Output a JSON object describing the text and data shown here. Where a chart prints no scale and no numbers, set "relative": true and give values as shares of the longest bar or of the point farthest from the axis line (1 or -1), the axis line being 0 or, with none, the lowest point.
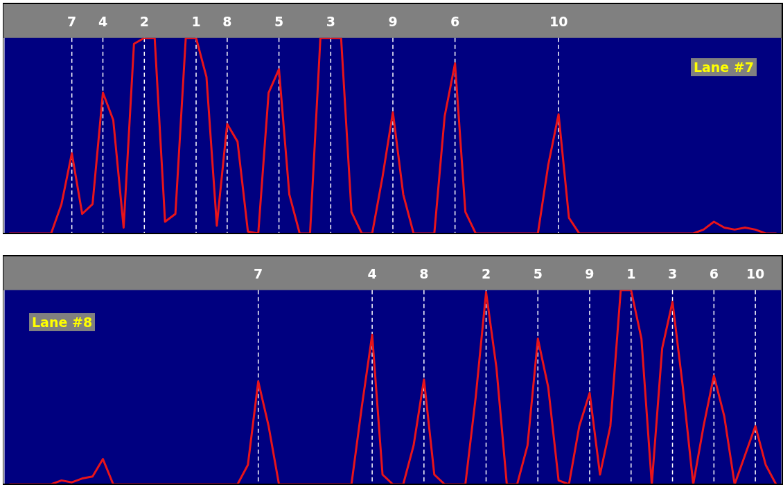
{
  "chart_data": [
    {
      "type": "line",
      "relative": true,
      "tick_labels": "x",
      "marker": "none",
      "line_style": "solid",
      "categories": [
        null,
        null,
        null,
        null,
        null,
        null,
        "7",
        null,
        null,
        "4",
        null,
        null,
        null,
        "2",
        null,
        null,
        null,
        null,
        "1",
        null,
        null,
        "8",
        null,
        null,
        null,
        null,
        "5",
        null,
        null,
        null,
        null,
        "3",
        null,
        null,
        null,
        null,
        null,
        "9",
        null,
        null,
        null,
        null,
        null,
        "6",
        null,
        null,
        null,
        null,
        null,
        null,
        null,
        null,
        null,
        "10",
        null,
        null,
        null,
        null,
        null,
        null,
        null,
        null,
        null,
        null,
        null,
        null,
        null,
        null,
        null,
        null,
        null,
        null,
        null,
        null,
        null
      ],
      "series": [
        {
          "color": "#e8141a",
          "values": [
            0,
            0,
            0,
            0,
            0,
            0.15,
            0.41,
            0.1,
            0.15,
            0.72,
            0.58,
            0.03,
            0.97,
            1,
            1,
            0.06,
            0.1,
            1,
            1,
            0.8,
            0.04,
            0.56,
            0.47,
            0.01,
            0,
            0.72,
            0.84,
            0.2,
            0,
            0,
            1,
            1,
            1,
            0.11,
            0,
            0,
            0.29,
            0.62,
            0.2,
            0,
            0,
            0,
            0.6,
            0.87,
            0.11,
            0,
            0,
            0,
            0,
            0,
            0,
            0,
            0.35,
            0.61,
            0.08,
            0,
            0,
            0,
            0,
            0,
            0,
            0,
            0,
            0,
            0,
            0,
            0,
            0.02,
            0.06,
            0.03,
            0.02,
            0.03,
            0.02,
            0,
            0
          ]
        }
      ],
      "ref_lines": [
        {
          "axis": "x",
          "value": "7",
          "color": "#ffffff",
          "line_style": "dashed"
        },
        {
          "axis": "x",
          "value": "4",
          "color": "#ffffff",
          "line_style": "dashed"
        },
        {
          "axis": "x",
          "value": "2",
          "color": "#ffffff",
          "line_style": "dashed"
        },
        {
          "axis": "x",
          "value": "1",
          "color": "#ffffff",
          "line_style": "dashed"
        },
        {
          "axis": "x",
          "value": "8",
          "color": "#ffffff",
          "line_style": "dashed"
        },
        {
          "axis": "x",
          "value": "5",
          "color": "#ffffff",
          "line_style": "dashed"
        },
        {
          "axis": "x",
          "value": "3",
          "color": "#ffffff",
          "line_style": "dashed"
        },
        {
          "axis": "x",
          "value": "9",
          "color": "#ffffff",
          "line_style": "dashed"
        },
        {
          "axis": "x",
          "value": "6",
          "color": "#ffffff",
          "line_style": "dashed"
        },
        {
          "axis": "x",
          "value": "10",
          "color": "#ffffff",
          "line_style": "dashed"
        }
      ],
      "annotations": [
        "Lane #7"
      ]
    },
    {
      "type": "line",
      "relative": true,
      "tick_labels": "x",
      "marker": "none",
      "line_style": "solid",
      "categories": [
        null,
        null,
        null,
        null,
        null,
        null,
        null,
        null,
        null,
        null,
        null,
        null,
        null,
        null,
        null,
        null,
        null,
        null,
        null,
        null,
        null,
        null,
        null,
        null,
        "7",
        null,
        null,
        null,
        null,
        null,
        null,
        null,
        null,
        null,
        null,
        "4",
        null,
        null,
        null,
        null,
        "8",
        null,
        null,
        null,
        null,
        null,
        "2",
        null,
        null,
        null,
        null,
        "5",
        null,
        null,
        null,
        null,
        "9",
        null,
        null,
        null,
        "1",
        null,
        null,
        null,
        "3",
        null,
        null,
        null,
        "6",
        null,
        null,
        null,
        "10",
        null,
        null
      ],
      "series": [
        {
          "color": "#e8141a",
          "values": [
            0,
            0,
            0,
            0,
            0,
            0.02,
            0.01,
            0.03,
            0.04,
            0.13,
            0,
            0,
            0,
            0,
            0,
            0,
            0,
            0,
            0,
            0,
            0,
            0,
            0,
            0.1,
            0.53,
            0.3,
            0,
            0,
            0,
            0,
            0,
            0,
            0,
            0,
            0.4,
            0.77,
            0.05,
            0,
            0,
            0.2,
            0.54,
            0.05,
            0,
            0,
            0,
            0.45,
            0.99,
            0.6,
            0,
            0,
            0.2,
            0.75,
            0.5,
            0.02,
            0,
            0.3,
            0.47,
            0.05,
            0.3,
            1,
            1,
            0.75,
            0,
            0.7,
            0.94,
            0.5,
            0,
            0.3,
            0.56,
            0.35,
            0,
            0.15,
            0.3,
            0.1,
            0
          ]
        }
      ],
      "ref_lines": [
        {
          "axis": "x",
          "value": "7",
          "color": "#ffffff",
          "line_style": "dashed"
        },
        {
          "axis": "x",
          "value": "4",
          "color": "#ffffff",
          "line_style": "dashed"
        },
        {
          "axis": "x",
          "value": "8",
          "color": "#ffffff",
          "line_style": "dashed"
        },
        {
          "axis": "x",
          "value": "2",
          "color": "#ffffff",
          "line_style": "dashed"
        },
        {
          "axis": "x",
          "value": "5",
          "color": "#ffffff",
          "line_style": "dashed"
        },
        {
          "axis": "x",
          "value": "9",
          "color": "#ffffff",
          "line_style": "dashed"
        },
        {
          "axis": "x",
          "value": "1",
          "color": "#ffffff",
          "line_style": "dashed"
        },
        {
          "axis": "x",
          "value": "3",
          "color": "#ffffff",
          "line_style": "dashed"
        },
        {
          "axis": "x",
          "value": "6",
          "color": "#ffffff",
          "line_style": "dashed"
        },
        {
          "axis": "x",
          "value": "10",
          "color": "#ffffff",
          "line_style": "dashed"
        }
      ],
      "annotations": [
        "Lane #8"
      ]
    }
  ]
}
